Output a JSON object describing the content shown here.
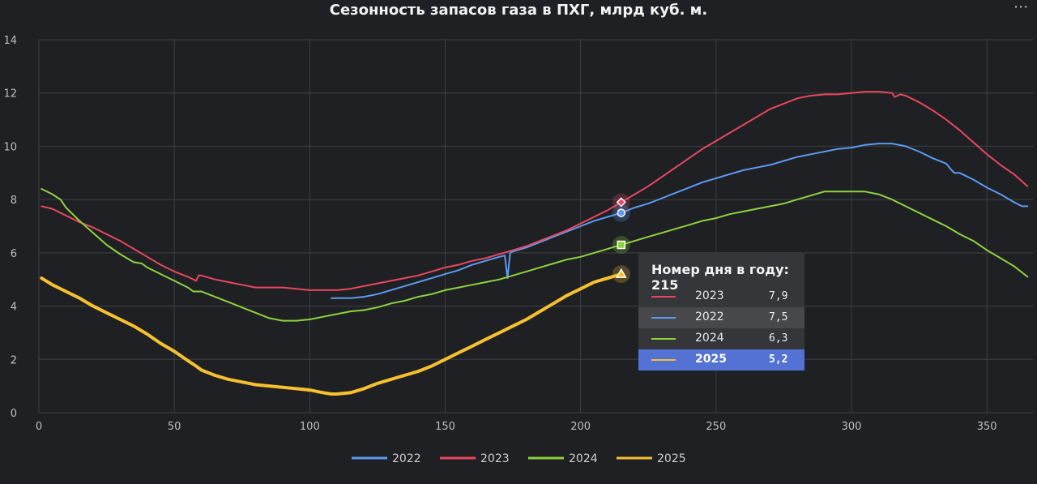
{
  "chart_data": {
    "type": "line",
    "title": "Сезонность запасов газа в ПХГ, млрд куб. м.",
    "xlim": [
      0,
      367
    ],
    "ylim": [
      0,
      14
    ],
    "x_ticks": [
      0,
      50,
      100,
      150,
      200,
      250,
      300,
      350
    ],
    "y_ticks": [
      0,
      2,
      4,
      6,
      8,
      10,
      12,
      14
    ],
    "grid": true,
    "legend_position": "bottom",
    "series": [
      {
        "name": "2022",
        "color": "#5b9bf0",
        "points": [
          [
            108,
            4.3
          ],
          [
            110,
            4.3
          ],
          [
            115,
            4.3
          ],
          [
            120,
            4.35
          ],
          [
            125,
            4.45
          ],
          [
            130,
            4.6
          ],
          [
            135,
            4.75
          ],
          [
            140,
            4.9
          ],
          [
            145,
            5.05
          ],
          [
            150,
            5.2
          ],
          [
            155,
            5.35
          ],
          [
            160,
            5.55
          ],
          [
            165,
            5.7
          ],
          [
            170,
            5.85
          ],
          [
            172,
            5.9
          ],
          [
            173,
            5.05
          ],
          [
            174,
            6.0
          ],
          [
            175,
            6.05
          ],
          [
            180,
            6.2
          ],
          [
            185,
            6.4
          ],
          [
            190,
            6.6
          ],
          [
            195,
            6.8
          ],
          [
            200,
            7.0
          ],
          [
            205,
            7.2
          ],
          [
            210,
            7.35
          ],
          [
            215,
            7.5
          ],
          [
            220,
            7.7
          ],
          [
            225,
            7.85
          ],
          [
            230,
            8.05
          ],
          [
            235,
            8.25
          ],
          [
            240,
            8.45
          ],
          [
            245,
            8.65
          ],
          [
            250,
            8.8
          ],
          [
            255,
            8.95
          ],
          [
            260,
            9.1
          ],
          [
            265,
            9.2
          ],
          [
            270,
            9.3
          ],
          [
            275,
            9.45
          ],
          [
            280,
            9.6
          ],
          [
            285,
            9.7
          ],
          [
            290,
            9.8
          ],
          [
            295,
            9.9
          ],
          [
            300,
            9.95
          ],
          [
            305,
            10.05
          ],
          [
            310,
            10.1
          ],
          [
            315,
            10.1
          ],
          [
            320,
            10.0
          ],
          [
            325,
            9.8
          ],
          [
            330,
            9.55
          ],
          [
            335,
            9.35
          ],
          [
            337,
            9.1
          ],
          [
            338,
            9.0
          ],
          [
            340,
            9.0
          ],
          [
            345,
            8.75
          ],
          [
            350,
            8.45
          ],
          [
            355,
            8.2
          ],
          [
            360,
            7.9
          ],
          [
            363,
            7.75
          ],
          [
            365,
            7.75
          ]
        ]
      },
      {
        "name": "2023",
        "color": "#e8475f",
        "points": [
          [
            1,
            7.75
          ],
          [
            5,
            7.65
          ],
          [
            10,
            7.4
          ],
          [
            15,
            7.15
          ],
          [
            20,
            6.95
          ],
          [
            25,
            6.7
          ],
          [
            30,
            6.45
          ],
          [
            35,
            6.15
          ],
          [
            40,
            5.85
          ],
          [
            45,
            5.55
          ],
          [
            50,
            5.3
          ],
          [
            55,
            5.1
          ],
          [
            58,
            4.95
          ],
          [
            59,
            5.15
          ],
          [
            60,
            5.15
          ],
          [
            65,
            5.0
          ],
          [
            70,
            4.9
          ],
          [
            75,
            4.8
          ],
          [
            80,
            4.7
          ],
          [
            85,
            4.7
          ],
          [
            90,
            4.7
          ],
          [
            95,
            4.65
          ],
          [
            100,
            4.6
          ],
          [
            105,
            4.6
          ],
          [
            110,
            4.6
          ],
          [
            115,
            4.65
          ],
          [
            120,
            4.75
          ],
          [
            125,
            4.85
          ],
          [
            130,
            4.95
          ],
          [
            135,
            5.05
          ],
          [
            140,
            5.15
          ],
          [
            145,
            5.3
          ],
          [
            150,
            5.45
          ],
          [
            155,
            5.55
          ],
          [
            160,
            5.7
          ],
          [
            165,
            5.8
          ],
          [
            170,
            5.95
          ],
          [
            175,
            6.1
          ],
          [
            180,
            6.25
          ],
          [
            185,
            6.45
          ],
          [
            190,
            6.65
          ],
          [
            195,
            6.85
          ],
          [
            200,
            7.1
          ],
          [
            205,
            7.35
          ],
          [
            210,
            7.6
          ],
          [
            215,
            7.9
          ],
          [
            220,
            8.2
          ],
          [
            225,
            8.5
          ],
          [
            230,
            8.85
          ],
          [
            235,
            9.2
          ],
          [
            240,
            9.55
          ],
          [
            245,
            9.9
          ],
          [
            250,
            10.2
          ],
          [
            255,
            10.5
          ],
          [
            260,
            10.8
          ],
          [
            265,
            11.1
          ],
          [
            270,
            11.4
          ],
          [
            275,
            11.6
          ],
          [
            280,
            11.8
          ],
          [
            285,
            11.9
          ],
          [
            290,
            11.95
          ],
          [
            295,
            11.95
          ],
          [
            300,
            12.0
          ],
          [
            305,
            12.05
          ],
          [
            310,
            12.05
          ],
          [
            315,
            12.0
          ],
          [
            316,
            11.85
          ],
          [
            318,
            11.95
          ],
          [
            320,
            11.9
          ],
          [
            325,
            11.65
          ],
          [
            330,
            11.35
          ],
          [
            335,
            11.0
          ],
          [
            340,
            10.6
          ],
          [
            345,
            10.15
          ],
          [
            350,
            9.7
          ],
          [
            355,
            9.3
          ],
          [
            360,
            8.95
          ],
          [
            365,
            8.5
          ]
        ]
      },
      {
        "name": "2024",
        "color": "#8fd13f",
        "points": [
          [
            1,
            8.4
          ],
          [
            5,
            8.2
          ],
          [
            8,
            8.0
          ],
          [
            10,
            7.7
          ],
          [
            15,
            7.2
          ],
          [
            20,
            6.75
          ],
          [
            25,
            6.3
          ],
          [
            30,
            5.95
          ],
          [
            35,
            5.65
          ],
          [
            38,
            5.6
          ],
          [
            40,
            5.45
          ],
          [
            45,
            5.2
          ],
          [
            50,
            4.95
          ],
          [
            55,
            4.7
          ],
          [
            57,
            4.55
          ],
          [
            60,
            4.55
          ],
          [
            65,
            4.35
          ],
          [
            70,
            4.15
          ],
          [
            75,
            3.95
          ],
          [
            80,
            3.75
          ],
          [
            85,
            3.55
          ],
          [
            90,
            3.45
          ],
          [
            95,
            3.45
          ],
          [
            100,
            3.5
          ],
          [
            105,
            3.6
          ],
          [
            110,
            3.7
          ],
          [
            115,
            3.8
          ],
          [
            120,
            3.85
          ],
          [
            125,
            3.95
          ],
          [
            130,
            4.1
          ],
          [
            135,
            4.2
          ],
          [
            140,
            4.35
          ],
          [
            145,
            4.45
          ],
          [
            150,
            4.6
          ],
          [
            155,
            4.7
          ],
          [
            160,
            4.8
          ],
          [
            165,
            4.9
          ],
          [
            170,
            5.0
          ],
          [
            175,
            5.15
          ],
          [
            180,
            5.3
          ],
          [
            185,
            5.45
          ],
          [
            190,
            5.6
          ],
          [
            195,
            5.75
          ],
          [
            200,
            5.85
          ],
          [
            205,
            6.0
          ],
          [
            210,
            6.15
          ],
          [
            215,
            6.3
          ],
          [
            220,
            6.45
          ],
          [
            225,
            6.6
          ],
          [
            230,
            6.75
          ],
          [
            235,
            6.9
          ],
          [
            240,
            7.05
          ],
          [
            245,
            7.2
          ],
          [
            250,
            7.3
          ],
          [
            255,
            7.45
          ],
          [
            260,
            7.55
          ],
          [
            265,
            7.65
          ],
          [
            270,
            7.75
          ],
          [
            275,
            7.85
          ],
          [
            280,
            8.0
          ],
          [
            285,
            8.15
          ],
          [
            290,
            8.3
          ],
          [
            295,
            8.3
          ],
          [
            300,
            8.3
          ],
          [
            305,
            8.3
          ],
          [
            310,
            8.2
          ],
          [
            315,
            8.0
          ],
          [
            320,
            7.75
          ],
          [
            325,
            7.5
          ],
          [
            330,
            7.25
          ],
          [
            335,
            7.0
          ],
          [
            340,
            6.7
          ],
          [
            345,
            6.45
          ],
          [
            350,
            6.1
          ],
          [
            355,
            5.8
          ],
          [
            360,
            5.5
          ],
          [
            365,
            5.1
          ]
        ]
      },
      {
        "name": "2025",
        "color": "#f6c02f",
        "points": [
          [
            1,
            5.05
          ],
          [
            5,
            4.8
          ],
          [
            10,
            4.55
          ],
          [
            15,
            4.3
          ],
          [
            20,
            4.0
          ],
          [
            25,
            3.75
          ],
          [
            30,
            3.5
          ],
          [
            35,
            3.25
          ],
          [
            40,
            2.95
          ],
          [
            45,
            2.6
          ],
          [
            50,
            2.3
          ],
          [
            55,
            1.95
          ],
          [
            58,
            1.75
          ],
          [
            60,
            1.6
          ],
          [
            65,
            1.4
          ],
          [
            70,
            1.25
          ],
          [
            75,
            1.15
          ],
          [
            80,
            1.05
          ],
          [
            85,
            1.0
          ],
          [
            90,
            0.95
          ],
          [
            95,
            0.9
          ],
          [
            100,
            0.85
          ],
          [
            105,
            0.75
          ],
          [
            108,
            0.7
          ],
          [
            110,
            0.7
          ],
          [
            115,
            0.75
          ],
          [
            120,
            0.9
          ],
          [
            125,
            1.1
          ],
          [
            130,
            1.25
          ],
          [
            135,
            1.4
          ],
          [
            140,
            1.55
          ],
          [
            145,
            1.75
          ],
          [
            150,
            2.0
          ],
          [
            155,
            2.25
          ],
          [
            160,
            2.5
          ],
          [
            165,
            2.75
          ],
          [
            170,
            3.0
          ],
          [
            175,
            3.25
          ],
          [
            180,
            3.5
          ],
          [
            185,
            3.8
          ],
          [
            190,
            4.1
          ],
          [
            195,
            4.4
          ],
          [
            200,
            4.65
          ],
          [
            205,
            4.9
          ],
          [
            210,
            5.05
          ],
          [
            215,
            5.2
          ]
        ]
      }
    ],
    "tooltip": {
      "title": "Номер дня в году: 215",
      "x": 215,
      "rows": [
        {
          "name": "2023",
          "value": "7,9",
          "color": "#e8475f",
          "marker": "diamond"
        },
        {
          "name": "2022",
          "value": "7,5",
          "color": "#5b9bf0",
          "marker": "circle"
        },
        {
          "name": "2024",
          "value": "6,3",
          "color": "#8fd13f",
          "marker": "square"
        },
        {
          "name": "2025",
          "value": "5,2",
          "color": "#f6c02f",
          "marker": "triangle",
          "selected": true
        }
      ]
    },
    "legend": [
      {
        "name": "2022",
        "color": "#5b9bf0"
      },
      {
        "name": "2023",
        "color": "#e8475f"
      },
      {
        "name": "2024",
        "color": "#8fd13f"
      },
      {
        "name": "2025",
        "color": "#f6c02f"
      }
    ]
  },
  "menu_icon": "ellipsis-icon"
}
